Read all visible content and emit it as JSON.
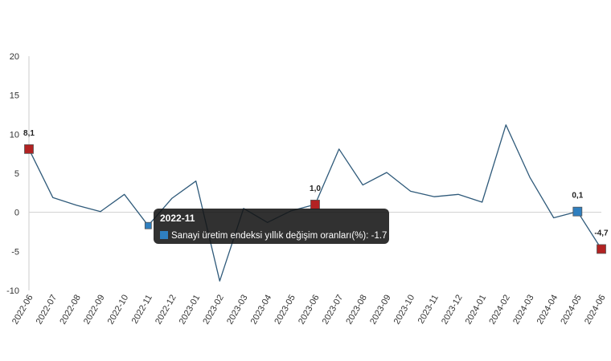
{
  "chart_data": {
    "type": "line",
    "x": [
      "2022-06",
      "2022-07",
      "2022-08",
      "2022-09",
      "2022-10",
      "2022-11",
      "2022-12",
      "2023-01",
      "2023-02",
      "2023-03",
      "2023-04",
      "2023-05",
      "2023-06",
      "2023-07",
      "2023-08",
      "2023-09",
      "2023-10",
      "2023-11",
      "2023-12",
      "2024-01",
      "2024-02",
      "2024-03",
      "2024-04",
      "2024-05",
      "2024-06"
    ],
    "series": [
      {
        "name": "Sanayi üretim endeksi yıllık değişim oranları(%)",
        "values": [
          8.1,
          1.9,
          0.9,
          0.1,
          2.3,
          -1.7,
          1.8,
          4.0,
          -8.8,
          0.5,
          -1.3,
          0.2,
          1.0,
          8.1,
          3.5,
          5.1,
          2.7,
          2.0,
          2.3,
          1.3,
          11.2,
          4.5,
          -0.7,
          0.1,
          -4.7
        ],
        "color": "#2f5a7a"
      }
    ],
    "ylim": [
      -10,
      20
    ],
    "yticks": [
      -10,
      -5,
      0,
      5,
      10,
      15,
      20
    ],
    "grid": false,
    "zero_line": true,
    "highlights": [
      {
        "index": 0,
        "label": "8,1",
        "marker_color": "#b22222"
      },
      {
        "index": 5,
        "label": "",
        "marker_color": "#2f7fbf"
      },
      {
        "index": 12,
        "label": "1,0",
        "marker_color": "#b22222"
      },
      {
        "index": 23,
        "label": "0,1",
        "marker_color": "#2f7fbf"
      },
      {
        "index": 24,
        "label": "-4,7",
        "marker_color": "#b22222"
      }
    ]
  },
  "tooltip": {
    "title": "2022-11",
    "text": "Sanayi üretim endeksi yıllık değişim oranları(%): -1.7",
    "swatch_color": "#2f7fbf"
  }
}
